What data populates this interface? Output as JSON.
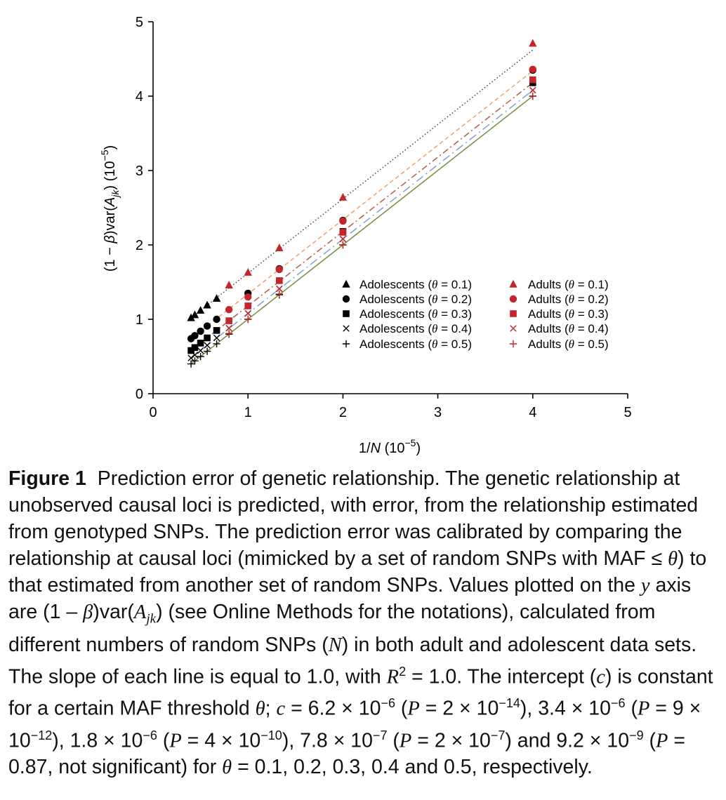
{
  "chart_data": {
    "type": "scatter",
    "xlabel": {
      "pre": "1/",
      "var": "N",
      "post": " (10",
      "sup": "−5",
      "end": ")"
    },
    "ylabel": {
      "pre": "(1 − ",
      "beta": "β",
      "mid": ")var(",
      "A": "A",
      "sub": "jk",
      "post": ") (10",
      "sup": "−5",
      "end": ")"
    },
    "xlim": [
      0,
      5
    ],
    "ylim": [
      0,
      5
    ],
    "xticks": [
      "0",
      "1",
      "2",
      "3",
      "4",
      "5"
    ],
    "yticks": [
      "0",
      "1",
      "2",
      "3",
      "4",
      "5"
    ],
    "grid": false,
    "legend_position": "lower-right",
    "x": [
      0.4,
      0.44,
      0.5,
      0.57,
      0.67,
      0.8,
      1.0,
      1.33,
      2.0,
      4.0
    ],
    "series": [
      {
        "name": "Adolescents (θ = 0.1)",
        "theta": "0.1",
        "group": "Adolescents",
        "marker": "triangle",
        "color": "#000000",
        "x": [
          0.4,
          0.44,
          0.5,
          0.57,
          0.67
        ],
        "y": [
          1.02,
          1.06,
          1.12,
          1.19,
          1.28
        ]
      },
      {
        "name": "Adolescents (θ = 0.2)",
        "theta": "0.2",
        "group": "Adolescents",
        "marker": "circle",
        "color": "#000000",
        "x": [
          0.4,
          0.44,
          0.5,
          0.57,
          0.67,
          1.0,
          1.33,
          2.0,
          4.0
        ],
        "y": [
          0.74,
          0.78,
          0.84,
          0.91,
          1.0,
          1.35,
          1.68,
          2.33,
          4.35
        ]
      },
      {
        "name": "Adolescents (θ = 0.3)",
        "theta": "0.3",
        "group": "Adolescents",
        "marker": "square",
        "color": "#000000",
        "x": [
          0.4,
          0.44,
          0.5,
          0.57,
          0.67,
          2.0,
          4.0
        ],
        "y": [
          0.58,
          0.62,
          0.68,
          0.75,
          0.85,
          2.18,
          4.18
        ]
      },
      {
        "name": "Adolescents (θ = 0.4)",
        "theta": "0.4",
        "group": "Adolescents",
        "marker": "x",
        "color": "#000000",
        "x": [
          0.4,
          0.44,
          0.5,
          0.57,
          0.67,
          0.8,
          1.0,
          1.33,
          2.0,
          4.0
        ],
        "y": [
          0.48,
          0.52,
          0.58,
          0.65,
          0.75,
          0.88,
          1.08,
          1.41,
          2.08,
          4.08
        ]
      },
      {
        "name": "Adolescents (θ = 0.5)",
        "theta": "0.5",
        "group": "Adolescents",
        "marker": "plus",
        "color": "#000000",
        "x": [
          0.4,
          0.44,
          0.5,
          0.57,
          0.67,
          0.8,
          1.0,
          1.33,
          2.0,
          4.0
        ],
        "y": [
          0.4,
          0.44,
          0.5,
          0.57,
          0.67,
          0.8,
          1.0,
          1.33,
          2.0,
          4.0
        ]
      },
      {
        "name": "Adults (θ = 0.1)",
        "theta": "0.1",
        "group": "Adults",
        "marker": "triangle",
        "color": "#c4262b",
        "x": [
          0.8,
          1.0,
          1.33,
          2.0,
          4.0
        ],
        "y": [
          1.46,
          1.63,
          1.96,
          2.64,
          4.71
        ]
      },
      {
        "name": "Adults (θ = 0.2)",
        "theta": "0.2",
        "group": "Adults",
        "marker": "circle",
        "color": "#c4262b",
        "x": [
          0.8,
          1.0,
          1.33,
          2.0,
          4.0
        ],
        "y": [
          1.13,
          1.3,
          1.67,
          2.32,
          4.36
        ]
      },
      {
        "name": "Adults (θ = 0.3)",
        "theta": "0.3",
        "group": "Adults",
        "marker": "square",
        "color": "#c4262b",
        "x": [
          0.8,
          1.0,
          1.33,
          2.0,
          4.0
        ],
        "y": [
          0.98,
          1.18,
          1.52,
          2.17,
          4.22
        ]
      },
      {
        "name": "Adults (θ = 0.4)",
        "theta": "0.4",
        "group": "Adults",
        "marker": "x",
        "color": "#c4262b",
        "x": [
          0.8,
          1.0,
          1.33,
          2.0,
          4.0
        ],
        "y": [
          0.88,
          1.08,
          1.41,
          2.08,
          4.08
        ]
      },
      {
        "name": "Adults (θ = 0.5)",
        "theta": "0.5",
        "group": "Adults",
        "marker": "plus",
        "color": "#c4262b",
        "x": [
          0.8,
          1.0,
          1.33,
          2.0,
          4.0
        ],
        "y": [
          0.81,
          1.0,
          1.34,
          2.0,
          4.0
        ]
      }
    ],
    "fit_lines": [
      {
        "theta": "0.1",
        "slope": 1.0,
        "intercept": 0.62,
        "style": "dotted",
        "color": "#444444"
      },
      {
        "theta": "0.2",
        "slope": 1.0,
        "intercept": 0.34,
        "style": "dashed",
        "color": "#f0a06a"
      },
      {
        "theta": "0.3",
        "slope": 1.0,
        "intercept": 0.18,
        "style": "dashdot",
        "color": "#b85a4a"
      },
      {
        "theta": "0.4",
        "slope": 1.0,
        "intercept": 0.078,
        "style": "longdash",
        "color": "#7fa3cc"
      },
      {
        "theta": "0.5",
        "slope": 1.0,
        "intercept": 0.0009,
        "style": "solid",
        "color": "#7a8a3a"
      }
    ]
  },
  "legend": {
    "theta_symbol": "θ",
    "adolescents": "Adolescents",
    "adults": "Adults"
  },
  "caption": {
    "label": "Figure 1",
    "s1": "Prediction error of genetic relationship. The genetic relationship at unobserved causal loci is predicted, with error, from the relationship estimated from genotyped SNPs. The prediction error was calibrated by comparing the relationship at causal loci (mimicked by a set of random SNPs with MAF ≤ ",
    "theta": "θ",
    "s2": ") to that estimated from another set of random SNPs. Values plotted on the ",
    "y": "y",
    "s3": " axis are (1 – ",
    "beta": "β",
    "s4": ")var(",
    "A": "A",
    "jk": "jk",
    "s5": ") (see Online Methods for the notations), calculated from different numbers of random SNPs (",
    "N": "N",
    "s6": ") in both adult and adolescent data sets. The slope of each line is equal to 1.0, with ",
    "R": "R",
    "two": "2",
    "s7": " = 1.0. The intercept (",
    "c": "c",
    "s8": ") is constant for a certain MAF threshold ",
    "s9": ";",
    "c2": "c",
    "s10": " = 6.2 × 10",
    "e1": "−6",
    "s11": " (",
    "P1": "P",
    "s12": " = 2 × 10",
    "e2": "−14",
    "s13": "), 3.4 × 10",
    "e3": "−6",
    "s14": " (",
    "P2": "P",
    "s15": " = 9 × 10",
    "e4": "−12",
    "s16": "), 1.8 × 10",
    "e5": "−6",
    "s17": " (",
    "P3": "P",
    "s18": " = 4 × 10",
    "e6": "−10",
    "s19": "), 7.8 × 10",
    "e7": "−7",
    "s20": " (",
    "P4": "P",
    "s21": " = 2 × 10",
    "e8": "−7",
    "s22": ") and 9.2 × 10",
    "e9": "−9",
    "s23": " (",
    "P5": "P",
    "s24": " = 0.87, not significant) for ",
    "theta3": "θ",
    "s25": " = 0.1, 0.2, 0.3, 0.4 and 0.5, respectively."
  }
}
